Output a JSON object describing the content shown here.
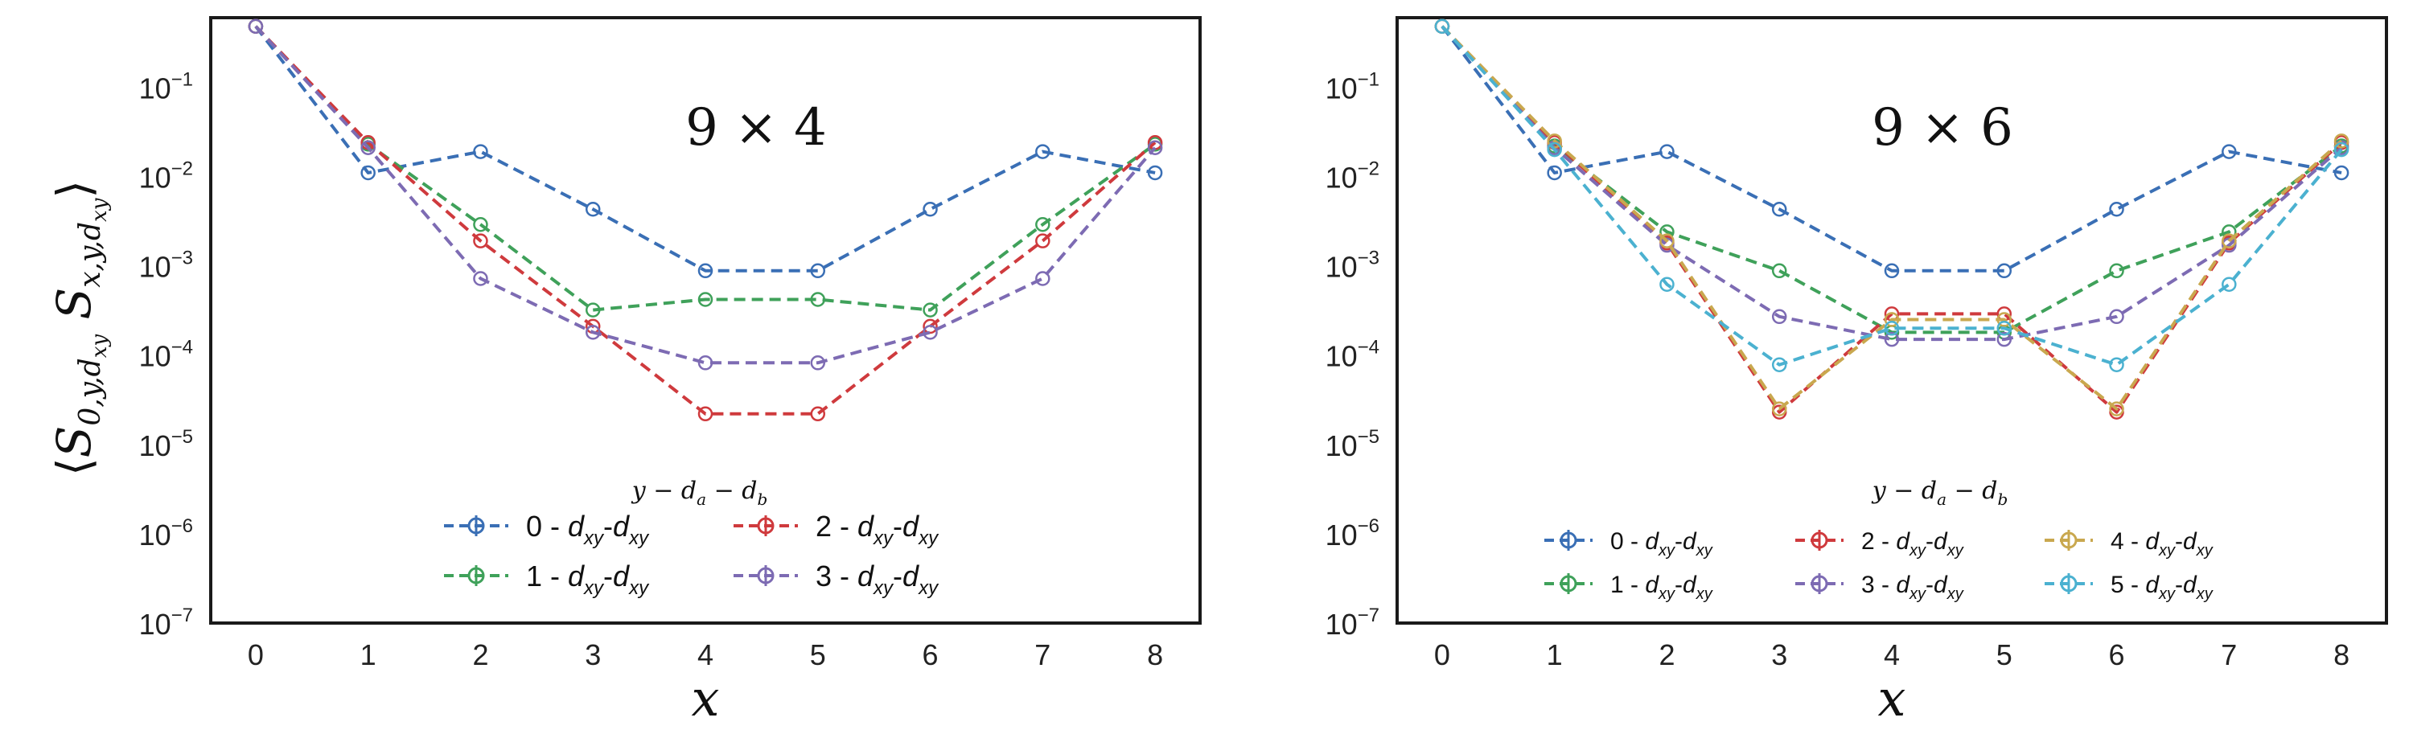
{
  "figure": {
    "ylabel": "⟨S0,y,dxy Sx,y,dxy⟩"
  },
  "chart_data": [
    {
      "type": "line",
      "title": "9 × 4",
      "xlabel": "x",
      "ylabel": "⟨S0,y,dxy Sx,y,dxy⟩",
      "yscale": "log",
      "ylim": [
        1e-07,
        0.6
      ],
      "xlim": [
        -0.4,
        8.4
      ],
      "x": [
        0,
        1,
        2,
        3,
        4,
        5,
        6,
        7,
        8
      ],
      "x_tick_labels": [
        "0",
        "1",
        "2",
        "3",
        "4",
        "5",
        "6",
        "7",
        "8"
      ],
      "y_ticks": [
        {
          "base": "10",
          "exp": "−1",
          "value": 0.1
        },
        {
          "base": "10",
          "exp": "−2",
          "value": 0.01
        },
        {
          "base": "10",
          "exp": "−3",
          "value": 0.001
        },
        {
          "base": "10",
          "exp": "−4",
          "value": 0.0001
        },
        {
          "base": "10",
          "exp": "−5",
          "value": 1e-05
        },
        {
          "base": "10",
          "exp": "−6",
          "value": 1e-06
        },
        {
          "base": "10",
          "exp": "−7",
          "value": 1e-07
        }
      ],
      "grid": false,
      "legend_title": "y − da − db",
      "legend_position": "bottom-center",
      "series": [
        {
          "name": "0 - dxy-dxy",
          "num": "0",
          "color": "#3a6fb5",
          "values": [
            0.48,
            0.011,
            0.019,
            0.0043,
            0.00088,
            0.00088,
            0.0043,
            0.019,
            0.011
          ]
        },
        {
          "name": "1 - dxy-dxy",
          "num": "1",
          "color": "#3fa15a",
          "values": [
            0.48,
            0.023,
            0.0029,
            0.00032,
            0.00042,
            0.00042,
            0.00032,
            0.0029,
            0.023
          ]
        },
        {
          "name": "2 - dxy-dxy",
          "num": "2",
          "color": "#cf3a3d",
          "values": [
            0.48,
            0.024,
            0.0019,
            0.00021,
            2.2e-05,
            2.2e-05,
            0.00021,
            0.0019,
            0.024
          ]
        },
        {
          "name": "3 - dxy-dxy",
          "num": "3",
          "color": "#7d6bb3",
          "values": [
            0.48,
            0.021,
            0.00072,
            0.00018,
            8.2e-05,
            8.2e-05,
            0.00018,
            0.00072,
            0.021
          ]
        }
      ]
    },
    {
      "type": "line",
      "title": "9 × 6",
      "xlabel": "x",
      "yscale": "log",
      "ylim": [
        1e-07,
        0.6
      ],
      "xlim": [
        -0.4,
        8.4
      ],
      "x": [
        0,
        1,
        2,
        3,
        4,
        5,
        6,
        7,
        8
      ],
      "x_tick_labels": [
        "0",
        "1",
        "2",
        "3",
        "4",
        "5",
        "6",
        "7",
        "8"
      ],
      "y_ticks": [
        {
          "base": "10",
          "exp": "−1",
          "value": 0.1
        },
        {
          "base": "10",
          "exp": "−2",
          "value": 0.01
        },
        {
          "base": "10",
          "exp": "−3",
          "value": 0.001
        },
        {
          "base": "10",
          "exp": "−4",
          "value": 0.0001
        },
        {
          "base": "10",
          "exp": "−5",
          "value": 1e-05
        },
        {
          "base": "10",
          "exp": "−6",
          "value": 1e-06
        },
        {
          "base": "10",
          "exp": "−7",
          "value": 1e-07
        }
      ],
      "grid": false,
      "legend_title": "y − da − db",
      "legend_position": "bottom-center",
      "series": [
        {
          "name": "0 - dxy-dxy",
          "num": "0",
          "color": "#3a6fb5",
          "values": [
            0.48,
            0.011,
            0.019,
            0.0043,
            0.00088,
            0.00088,
            0.0043,
            0.019,
            0.011
          ]
        },
        {
          "name": "1 - dxy-dxy",
          "num": "1",
          "color": "#3fa15a",
          "values": [
            0.48,
            0.022,
            0.0024,
            0.00088,
            0.00018,
            0.00018,
            0.00088,
            0.0024,
            0.022
          ]
        },
        {
          "name": "2 - dxy-dxy",
          "num": "2",
          "color": "#cf3a3d",
          "values": [
            0.48,
            0.024,
            0.0018,
            2.3e-05,
            0.00029,
            0.00029,
            2.3e-05,
            0.0018,
            0.024
          ]
        },
        {
          "name": "3 - dxy-dxy",
          "num": "3",
          "color": "#7d6bb3",
          "values": [
            0.48,
            0.021,
            0.0017,
            0.00027,
            0.00015,
            0.00015,
            0.00027,
            0.0017,
            0.021
          ]
        },
        {
          "name": "4 - dxy-dxy",
          "num": "4",
          "color": "#c9a84f",
          "values": [
            0.48,
            0.025,
            0.0019,
            2.5e-05,
            0.00025,
            0.00025,
            2.5e-05,
            0.0019,
            0.025
          ]
        },
        {
          "name": "5 - dxy-dxy",
          "num": "5",
          "color": "#4bb1d0",
          "values": [
            0.48,
            0.02,
            0.00062,
            7.8e-05,
            0.0002,
            0.0002,
            7.8e-05,
            0.00062,
            0.02
          ]
        }
      ]
    }
  ]
}
